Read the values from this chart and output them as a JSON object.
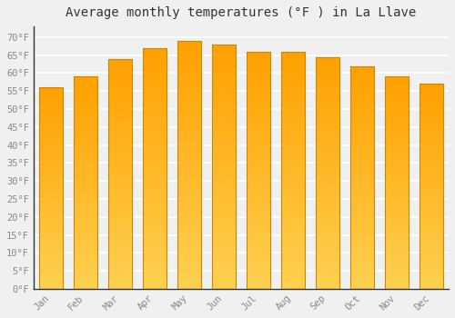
{
  "title": "Average monthly temperatures (°F ) in La Llave",
  "months": [
    "Jan",
    "Feb",
    "Mar",
    "Apr",
    "May",
    "Jun",
    "Jul",
    "Aug",
    "Sep",
    "Oct",
    "Nov",
    "Dec"
  ],
  "values": [
    56.0,
    59.0,
    64.0,
    67.0,
    69.0,
    68.0,
    66.0,
    66.0,
    64.5,
    62.0,
    59.0,
    57.0
  ],
  "bar_color_bottom": "#FFD050",
  "bar_color_top": "#FFA000",
  "bar_edge_color": "#CC8800",
  "background_color": "#f0f0f0",
  "grid_color": "#ffffff",
  "tick_color": "#888888",
  "title_color": "#333333",
  "axis_color": "#333333",
  "ylim": [
    0,
    73
  ],
  "yticks": [
    0,
    5,
    10,
    15,
    20,
    25,
    30,
    35,
    40,
    45,
    50,
    55,
    60,
    65,
    70
  ],
  "ytick_labels": [
    "0°F",
    "5°F",
    "10°F",
    "15°F",
    "20°F",
    "25°F",
    "30°F",
    "35°F",
    "40°F",
    "45°F",
    "50°F",
    "55°F",
    "60°F",
    "65°F",
    "70°F"
  ],
  "title_fontsize": 10,
  "tick_fontsize": 7.5,
  "bar_width": 0.7,
  "figsize": [
    5.0,
    3.5
  ],
  "dpi": 100
}
